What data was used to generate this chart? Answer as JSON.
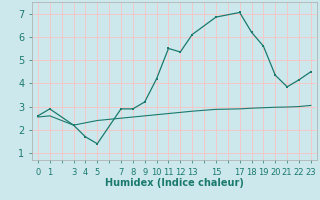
{
  "xlabel": "Humidex (Indice chaleur)",
  "bg_color": "#cde8ec",
  "grid_color": "#f5c8c8",
  "line_color": "#1a7a6e",
  "line1_x": [
    0,
    1,
    3,
    4,
    5,
    7,
    8,
    9,
    10,
    11,
    12,
    13,
    15,
    17,
    18,
    19,
    20,
    21,
    22,
    23
  ],
  "line1_y": [
    2.6,
    2.9,
    2.2,
    1.7,
    1.4,
    2.9,
    2.9,
    3.2,
    4.2,
    5.5,
    5.35,
    6.1,
    6.85,
    7.05,
    6.2,
    5.6,
    4.35,
    3.85,
    4.15,
    4.5
  ],
  "line2_x": [
    0,
    1,
    3,
    4,
    5,
    7,
    8,
    9,
    10,
    11,
    12,
    13,
    15,
    17,
    18,
    19,
    20,
    21,
    22,
    23
  ],
  "line2_y": [
    2.55,
    2.6,
    2.2,
    2.3,
    2.4,
    2.5,
    2.55,
    2.6,
    2.65,
    2.7,
    2.75,
    2.8,
    2.88,
    2.9,
    2.93,
    2.95,
    2.97,
    2.98,
    3.0,
    3.05
  ],
  "xlim": [
    -0.5,
    23.5
  ],
  "ylim": [
    0.7,
    7.5
  ],
  "yticks": [
    1,
    2,
    3,
    4,
    5,
    6,
    7
  ],
  "xtick_labels": [
    "0",
    "1",
    "",
    "3",
    "4",
    "5",
    "",
    "7",
    "8",
    "9",
    "10",
    "11",
    "12",
    "13",
    "",
    "15",
    "",
    "17",
    "18",
    "19",
    "20",
    "21",
    "22",
    "23"
  ],
  "xtick_positions": [
    0,
    1,
    2,
    3,
    4,
    5,
    6,
    7,
    8,
    9,
    10,
    11,
    12,
    13,
    14,
    15,
    16,
    17,
    18,
    19,
    20,
    21,
    22,
    23
  ]
}
